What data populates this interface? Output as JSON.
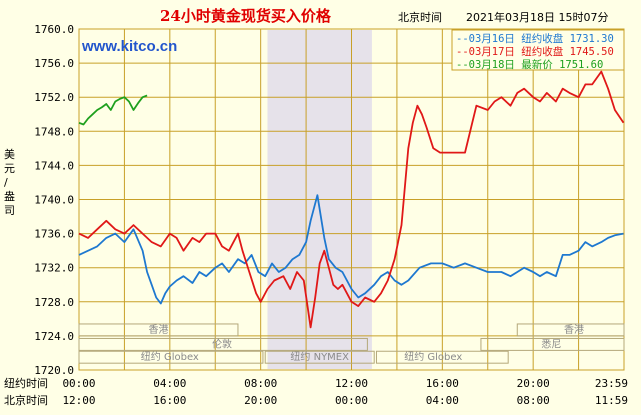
{
  "header": {
    "title": "24小时黄金现货买入价格",
    "beijing_time_label": "北京时间",
    "timestamp": "2021年03月18日 15时07分",
    "website": "www.kitco.cn"
  },
  "colors": {
    "background": "#ffffe6",
    "grid": "#c8a028",
    "shade": "#e6e2ea",
    "mar16": "#1e78d0",
    "mar17": "#e01818",
    "mar18": "#1ea01e"
  },
  "legend": [
    {
      "text": "--03月16日  纽约收盘 1731.30",
      "color": "#1e78d0"
    },
    {
      "text": "--03月17日  纽约收盘 1745.50",
      "color": "#e01818"
    },
    {
      "text": "--03月18日    最新价 1751.60",
      "color": "#1ea01e"
    }
  ],
  "markets": {
    "hongkong_left": "香港",
    "hongkong_right": "香港",
    "london": "伦敦",
    "sydney": "悉尼",
    "globex_1": "纽约 Globex",
    "nymex": "纽约 NYMEX",
    "globex_2": "纽约 Globex"
  },
  "axis": {
    "ylabel": "美元/盎司",
    "x_row1_label": "纽约时间",
    "x_row2_label": "北京时间"
  },
  "chart_data": {
    "type": "line",
    "title": "24小时黄金现货买入价格",
    "ylabel": "美元/盎司",
    "ylim": [
      1720,
      1760
    ],
    "yticks": [
      "1720.0",
      "1724.0",
      "1728.0",
      "1732.0",
      "1736.0",
      "1740.0",
      "1744.0",
      "1748.0",
      "1752.0",
      "1756.0",
      "1760.0"
    ],
    "xlim": [
      0,
      24
    ],
    "x_ticks_ny": [
      "00:00",
      "04:00",
      "08:00",
      "12:00",
      "16:00",
      "20:00",
      "23:59"
    ],
    "x_ticks_beijing": [
      "12:00",
      "16:00",
      "20:00",
      "00:00",
      "04:00",
      "08:00",
      "11:59"
    ],
    "grid": true,
    "shaded_hours_ny": [
      8.3,
      12.9
    ],
    "series": [
      {
        "name": "03月16日",
        "close_label": "纽约收盘 1731.30",
        "color": "#1e78d0",
        "x": [
          0,
          0.4,
          0.8,
          1.2,
          1.6,
          2.0,
          2.4,
          2.8,
          3.0,
          3.2,
          3.4,
          3.6,
          3.8,
          4.0,
          4.3,
          4.6,
          5.0,
          5.3,
          5.6,
          6.0,
          6.3,
          6.6,
          7.0,
          7.3,
          7.6,
          7.9,
          8.2,
          8.5,
          8.8,
          9.1,
          9.4,
          9.7,
          10.0,
          10.2,
          10.5,
          10.8,
          11.0,
          11.3,
          11.6,
          12.0,
          12.3,
          12.6,
          13.0,
          13.3,
          13.6,
          13.9,
          14.2,
          14.5,
          15.0,
          15.5,
          16.0,
          16.5,
          17.0,
          17.5,
          18.0,
          18.3,
          18.6,
          19.0,
          19.3,
          19.6,
          20.0,
          20.3,
          20.6,
          21.0,
          21.3,
          21.6,
          22.0,
          22.3,
          22.6,
          23.0,
          23.3,
          23.6,
          23.98
        ],
        "y": [
          1733.5,
          1734.0,
          1734.5,
          1735.5,
          1736.0,
          1735.0,
          1736.5,
          1734.0,
          1731.5,
          1730.0,
          1728.5,
          1727.8,
          1729.0,
          1729.8,
          1730.5,
          1731.0,
          1730.2,
          1731.5,
          1731.0,
          1732.0,
          1732.5,
          1731.5,
          1733.0,
          1732.5,
          1733.5,
          1731.5,
          1731.0,
          1732.5,
          1731.5,
          1732.0,
          1733.0,
          1733.5,
          1735.0,
          1737.5,
          1740.5,
          1735.5,
          1733.0,
          1732.0,
          1731.5,
          1729.5,
          1728.5,
          1729.0,
          1730.0,
          1731.0,
          1731.5,
          1730.5,
          1730.0,
          1730.5,
          1732.0,
          1732.5,
          1732.5,
          1732.0,
          1732.5,
          1732.0,
          1731.5,
          1731.5,
          1731.5,
          1731.0,
          1731.5,
          1732.0,
          1731.5,
          1731.0,
          1731.5,
          1731.0,
          1733.5,
          1733.5,
          1734.0,
          1735.0,
          1734.5,
          1735.0,
          1735.5,
          1735.8,
          1736.0
        ]
      },
      {
        "name": "03月17日",
        "close_label": "纽约收盘 1745.50",
        "color": "#e01818",
        "x": [
          0,
          0.4,
          0.8,
          1.2,
          1.6,
          2.0,
          2.4,
          2.8,
          3.2,
          3.6,
          4.0,
          4.3,
          4.6,
          5.0,
          5.3,
          5.6,
          6.0,
          6.3,
          6.6,
          7.0,
          7.2,
          7.5,
          7.8,
          8.0,
          8.3,
          8.6,
          9.0,
          9.3,
          9.6,
          9.9,
          10.2,
          10.4,
          10.6,
          10.8,
          11.0,
          11.2,
          11.4,
          11.6,
          12.0,
          12.3,
          12.6,
          13.0,
          13.3,
          13.6,
          13.9,
          14.2,
          14.5,
          14.7,
          14.9,
          15.1,
          15.3,
          15.6,
          15.9,
          16.2,
          16.5,
          16.8,
          17.0,
          17.5,
          18.0,
          18.3,
          18.6,
          19.0,
          19.3,
          19.6,
          20.0,
          20.3,
          20.6,
          21.0,
          21.3,
          21.6,
          22.0,
          22.3,
          22.6,
          23.0,
          23.3,
          23.6,
          23.98
        ],
        "y": [
          1736.0,
          1735.5,
          1736.5,
          1737.5,
          1736.5,
          1736.0,
          1737.0,
          1736.0,
          1735.0,
          1734.5,
          1736.0,
          1735.5,
          1734.0,
          1735.5,
          1735.0,
          1736.0,
          1736.0,
          1734.5,
          1734.0,
          1736.0,
          1734.0,
          1731.5,
          1729.0,
          1728.0,
          1729.5,
          1730.5,
          1731.0,
          1729.5,
          1731.5,
          1730.5,
          1725.0,
          1728.5,
          1732.5,
          1734.0,
          1732.0,
          1730.0,
          1729.5,
          1730.0,
          1728.0,
          1727.5,
          1728.5,
          1728.0,
          1729.0,
          1730.5,
          1733.0,
          1737.0,
          1746.0,
          1749.0,
          1751.0,
          1750.0,
          1748.5,
          1746.0,
          1745.5,
          1745.5,
          1745.5,
          1745.5,
          1745.5,
          1751.0,
          1750.5,
          1751.5,
          1752.0,
          1751.0,
          1752.5,
          1753.0,
          1752.0,
          1751.5,
          1752.5,
          1751.5,
          1753.0,
          1752.5,
          1752.0,
          1753.5,
          1753.5,
          1755.0,
          1753.0,
          1750.5,
          1749.0
        ]
      },
      {
        "name": "03月18日",
        "close_label": "最新价 1751.60",
        "color": "#1ea01e",
        "x": [
          0,
          0.2,
          0.4,
          0.6,
          0.8,
          1.0,
          1.2,
          1.4,
          1.6,
          1.8,
          2.0,
          2.2,
          2.4,
          2.6,
          2.8,
          3.0
        ],
        "y": [
          1749.0,
          1748.8,
          1749.5,
          1750.0,
          1750.5,
          1750.8,
          1751.2,
          1750.5,
          1751.5,
          1751.8,
          1752.0,
          1751.5,
          1750.5,
          1751.3,
          1752.0,
          1752.2
        ]
      }
    ]
  }
}
